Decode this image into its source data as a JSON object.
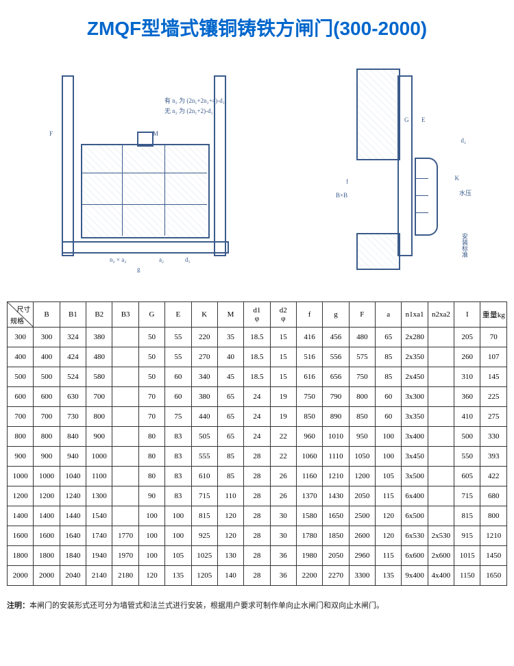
{
  "title": "ZMQF型墙式镶铜铸铁方闸门(300-2000)",
  "diagram_labels": {
    "yn2": "有 n₂ 为 (2n₁+2n₂+4)-d₁",
    "wn2": "无 n₂ 为 (2n₁+2)-d₁",
    "m": "M",
    "g": "g",
    "a2": "a₂",
    "d1": "d₁",
    "n2xa2": "n₂ × a₂",
    "F": "F",
    "shuiya": "水压",
    "G": "G",
    "E": "E",
    "d2": "d₂",
    "K": "K",
    "BxB": "B×B",
    "anzhuang": "安装标准",
    "f": "f"
  },
  "corner": {
    "top": "尺寸",
    "bottom": "规格"
  },
  "columns": [
    "B",
    "B1",
    "B2",
    "B3",
    "G",
    "E",
    "K",
    "M",
    "d1\nφ",
    "d2\nφ",
    "f",
    "g",
    "F",
    "a",
    "n1xa1",
    "n2xa2",
    "I",
    "重量kg"
  ],
  "row_headers": [
    "300",
    "400",
    "500",
    "600",
    "700",
    "800",
    "900",
    "1000",
    "1200",
    "1400",
    "1600",
    "1800",
    "2000"
  ],
  "rows": [
    [
      "300",
      "324",
      "380",
      "",
      "50",
      "55",
      "220",
      "35",
      "18.5",
      "15",
      "416",
      "456",
      "480",
      "65",
      "2x280",
      "",
      "205",
      "70"
    ],
    [
      "400",
      "424",
      "480",
      "",
      "50",
      "55",
      "270",
      "40",
      "18.5",
      "15",
      "516",
      "556",
      "575",
      "85",
      "2x350",
      "",
      "260",
      "107"
    ],
    [
      "500",
      "524",
      "580",
      "",
      "50",
      "60",
      "340",
      "45",
      "18.5",
      "15",
      "616",
      "656",
      "750",
      "85",
      "2x450",
      "",
      "310",
      "145"
    ],
    [
      "600",
      "630",
      "700",
      "",
      "70",
      "60",
      "380",
      "65",
      "24",
      "19",
      "750",
      "790",
      "800",
      "60",
      "3x300",
      "",
      "360",
      "225"
    ],
    [
      "700",
      "730",
      "800",
      "",
      "70",
      "75",
      "440",
      "65",
      "24",
      "19",
      "850",
      "890",
      "850",
      "60",
      "3x350",
      "",
      "410",
      "275"
    ],
    [
      "800",
      "840",
      "900",
      "",
      "80",
      "83",
      "505",
      "65",
      "24",
      "22",
      "960",
      "1010",
      "950",
      "100",
      "3x400",
      "",
      "500",
      "330"
    ],
    [
      "900",
      "940",
      "1000",
      "",
      "80",
      "83",
      "555",
      "85",
      "28",
      "22",
      "1060",
      "1110",
      "1050",
      "100",
      "3x450",
      "",
      "550",
      "393"
    ],
    [
      "1000",
      "1040",
      "1100",
      "",
      "80",
      "83",
      "610",
      "85",
      "28",
      "26",
      "1160",
      "1210",
      "1200",
      "105",
      "3x500",
      "",
      "605",
      "422"
    ],
    [
      "1200",
      "1240",
      "1300",
      "",
      "90",
      "83",
      "715",
      "110",
      "28",
      "26",
      "1370",
      "1430",
      "2050",
      "115",
      "6x400",
      "",
      "715",
      "680"
    ],
    [
      "1400",
      "1440",
      "1540",
      "",
      "100",
      "100",
      "815",
      "120",
      "28",
      "30",
      "1580",
      "1650",
      "2500",
      "120",
      "6x500",
      "",
      "815",
      "800"
    ],
    [
      "1600",
      "1640",
      "1740",
      "1770",
      "100",
      "100",
      "925",
      "120",
      "28",
      "30",
      "1780",
      "1850",
      "2600",
      "120",
      "6x530",
      "2x530",
      "915",
      "1210"
    ],
    [
      "1800",
      "1840",
      "1940",
      "1970",
      "100",
      "105",
      "1025",
      "130",
      "28",
      "36",
      "1980",
      "2050",
      "2960",
      "115",
      "6x600",
      "2x600",
      "1015",
      "1450"
    ],
    [
      "2000",
      "2040",
      "2140",
      "2180",
      "120",
      "135",
      "1205",
      "140",
      "28",
      "36",
      "2200",
      "2270",
      "3300",
      "135",
      "9x400",
      "4x400",
      "1150",
      "1650"
    ]
  ],
  "note_label": "注明：",
  "note_text": "本闸门的安装形式还可分为墙管式和法兰式进行安装，根据用户要求可制作单向止水闸门和双向止水闸门。",
  "colors": {
    "title": "#0066cc",
    "diagram_stroke": "#3a5a8a",
    "border": "#333333",
    "background": "#ffffff"
  }
}
